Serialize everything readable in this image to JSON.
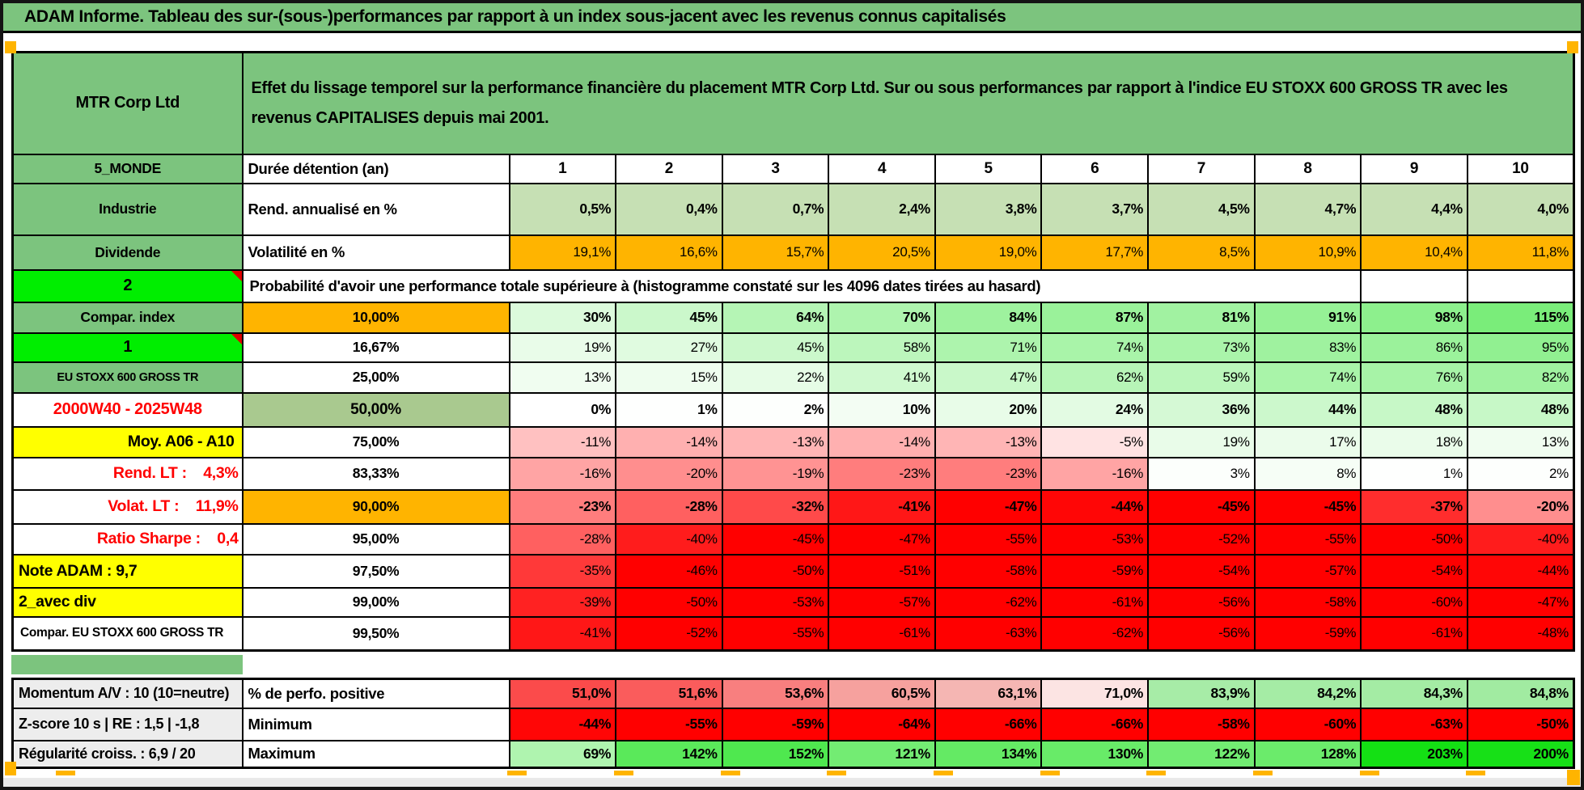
{
  "title": "ADAM Informe. Tableau des sur-(sous-)performances par rapport à un index sous-jacent avec les revenus connus capitalisés",
  "header": {
    "company": "MTR Corp Ltd",
    "description": "Effet du lissage temporel sur la performance financière du placement MTR Corp Ltd. Sur ou sous performances par rapport à l'indice EU STOXX 600 GROSS TR avec les revenus CAPITALISES depuis mai 2001."
  },
  "palette": {
    "header_green": "#7CC47E",
    "bright_green": "#00EE00",
    "yellow": "#FFFF00",
    "orange": "#FFB400",
    "mid_green": "#A9C98F",
    "light_green": "#C6E0B4",
    "gray_label": "#EDEDED",
    "footer_gray": "#E9E9E9",
    "red_text": "#FF0000",
    "corner_mark": "#FFB400",
    "scale_green_max": "#00DD00",
    "scale_red_max": "#FF0000"
  },
  "main_table": {
    "rows": [
      {
        "a": {
          "text": "5_MONDE",
          "variant": "a-green"
        },
        "b": {
          "text": "Durée détention (an)",
          "variant": "b-left"
        },
        "cells": {
          "mode": "header",
          "values": [
            "1",
            "2",
            "3",
            "4",
            "5",
            "6",
            "7",
            "8",
            "9",
            "10"
          ]
        }
      },
      {
        "a": {
          "text": "Industrie",
          "variant": "a-green"
        },
        "b": {
          "text": "Rend. annualisé en %",
          "variant": "b-left"
        },
        "cells": {
          "mode": "uniform",
          "bg": "light_green",
          "bold": true,
          "values": [
            "0,5%",
            "0,4%",
            "0,7%",
            "2,4%",
            "3,8%",
            "3,7%",
            "4,5%",
            "4,7%",
            "4,4%",
            "4,0%"
          ]
        }
      },
      {
        "a": {
          "text": "Dividende",
          "variant": "a-green"
        },
        "b": {
          "text": "Volatilité en %",
          "variant": "b-left"
        },
        "cells": {
          "mode": "uniform",
          "bg": "orange",
          "bold": false,
          "values": [
            "19,1%",
            "16,6%",
            "15,7%",
            "20,5%",
            "19,0%",
            "17,7%",
            "8,5%",
            "10,9%",
            "10,4%",
            "11,8%"
          ]
        }
      },
      {
        "a": {
          "text": "2",
          "variant": "a-bright",
          "triangle": true
        },
        "type": "merged",
        "merged_text": "Probabilité d'avoir une performance totale supérieure à (histogramme constaté sur les 4096 dates tirées au hasard)"
      },
      {
        "a": {
          "text": "Compar. index",
          "variant": "a-green"
        },
        "b": {
          "text": "10,00%",
          "variant": "b-orange"
        },
        "cells": {
          "mode": "scale",
          "bold": true,
          "values": [
            "30%",
            "45%",
            "64%",
            "70%",
            "84%",
            "87%",
            "81%",
            "91%",
            "98%",
            "115%"
          ]
        }
      },
      {
        "a": {
          "text": "1",
          "variant": "a-bright",
          "triangle": true
        },
        "b": {
          "text": "16,67%",
          "variant": "b-pct"
        },
        "cells": {
          "mode": "scale",
          "bold": false,
          "values": [
            "19%",
            "27%",
            "45%",
            "58%",
            "71%",
            "74%",
            "73%",
            "83%",
            "86%",
            "95%"
          ]
        }
      },
      {
        "a": {
          "text": "EU STOXX 600 GROSS TR",
          "variant": "a-green-small"
        },
        "b": {
          "text": "25,00%",
          "variant": "b-pct"
        },
        "cells": {
          "mode": "scale",
          "bold": false,
          "values": [
            "13%",
            "15%",
            "22%",
            "41%",
            "47%",
            "62%",
            "59%",
            "74%",
            "76%",
            "82%"
          ]
        }
      },
      {
        "a": {
          "text": "2000W40 - 2025W48",
          "variant": "a-red-c"
        },
        "b": {
          "text": "50,00%",
          "variant": "b-green"
        },
        "cells": {
          "mode": "scale",
          "bold": true,
          "values": [
            "0%",
            "1%",
            "2%",
            "10%",
            "20%",
            "24%",
            "36%",
            "44%",
            "48%",
            "48%"
          ]
        }
      },
      {
        "a": {
          "text": "Moy. A06 - A10",
          "variant": "a-yellow-r"
        },
        "b": {
          "text": "75,00%",
          "variant": "b-pct"
        },
        "cells": {
          "mode": "scale",
          "bold": false,
          "values": [
            "-11%",
            "-14%",
            "-13%",
            "-14%",
            "-13%",
            "-5%",
            "19%",
            "17%",
            "18%",
            "13%"
          ]
        }
      },
      {
        "a": {
          "text": "Rend. LT :    4,3%",
          "variant": "a-red-r"
        },
        "b": {
          "text": "83,33%",
          "variant": "b-pct"
        },
        "cells": {
          "mode": "scale",
          "bold": false,
          "values": [
            "-16%",
            "-20%",
            "-19%",
            "-23%",
            "-23%",
            "-16%",
            "3%",
            "8%",
            "1%",
            "2%"
          ]
        }
      },
      {
        "a": {
          "text": "Volat. LT :    11,9%",
          "variant": "a-red-r"
        },
        "b": {
          "text": "90,00%",
          "variant": "b-orange"
        },
        "cells": {
          "mode": "scale",
          "bold": true,
          "values": [
            "-23%",
            "-28%",
            "-32%",
            "-41%",
            "-47%",
            "-44%",
            "-45%",
            "-45%",
            "-37%",
            "-20%"
          ]
        }
      },
      {
        "a": {
          "text": "Ratio Sharpe :    0,4",
          "variant": "a-red-r"
        },
        "b": {
          "text": "95,00%",
          "variant": "b-pct"
        },
        "cells": {
          "mode": "scale",
          "bold": false,
          "values": [
            "-28%",
            "-40%",
            "-45%",
            "-47%",
            "-55%",
            "-53%",
            "-52%",
            "-55%",
            "-50%",
            "-40%"
          ]
        }
      },
      {
        "a": {
          "text": "Note ADAM : 9,7",
          "variant": "a-yellow-l"
        },
        "b": {
          "text": "97,50%",
          "variant": "b-pct"
        },
        "cells": {
          "mode": "scale",
          "bold": false,
          "values": [
            "-35%",
            "-46%",
            "-50%",
            "-51%",
            "-58%",
            "-59%",
            "-54%",
            "-57%",
            "-54%",
            "-44%"
          ]
        }
      },
      {
        "a": {
          "text": "2_avec div",
          "variant": "a-yellow-l"
        },
        "b": {
          "text": "99,00%",
          "variant": "b-pct"
        },
        "cells": {
          "mode": "scale",
          "bold": false,
          "values": [
            "-39%",
            "-50%",
            "-53%",
            "-57%",
            "-62%",
            "-61%",
            "-56%",
            "-58%",
            "-60%",
            "-47%"
          ]
        }
      },
      {
        "a": {
          "text": "Compar. EU STOXX 600 GROSS TR",
          "variant": "a-white-l"
        },
        "b": {
          "text": "99,50%",
          "variant": "b-pct"
        },
        "cells": {
          "mode": "scale",
          "bold": false,
          "values": [
            "-41%",
            "-52%",
            "-55%",
            "-61%",
            "-63%",
            "-62%",
            "-56%",
            "-59%",
            "-61%",
            "-48%"
          ]
        }
      }
    ]
  },
  "bottom_table": {
    "rows": [
      {
        "a": {
          "text": "Momentum A/V : 10 (10=neutre)",
          "variant": "a-gray"
        },
        "b": {
          "text": "% de perfo. positive",
          "variant": "b-left"
        },
        "cells": {
          "mode": "explicit",
          "bold": true,
          "values": [
            "51,0%",
            "51,6%",
            "53,6%",
            "60,5%",
            "63,1%",
            "71,0%",
            "83,9%",
            "84,2%",
            "84,3%",
            "84,8%"
          ],
          "colors": [
            "#FB4B4B",
            "#FA5C5C",
            "#F87F7F",
            "#F6A19E",
            "#F5B6B3",
            "#FCE4E3",
            "#A7ECA7",
            "#A5ECA5",
            "#A4ECA4",
            "#A1EBA1"
          ]
        }
      },
      {
        "a": {
          "text": "Z-score 10 s | RE : 1,5 | -1,8",
          "variant": "a-gray"
        },
        "b": {
          "text": "Minimum",
          "variant": "b-left"
        },
        "cells": {
          "mode": "scale",
          "bold": true,
          "values": [
            "-44%",
            "-55%",
            "-59%",
            "-64%",
            "-66%",
            "-66%",
            "-58%",
            "-60%",
            "-63%",
            "-50%"
          ]
        }
      },
      {
        "a": {
          "text": "Régularité croiss. : 6,9 / 20",
          "variant": "a-gray"
        },
        "b": {
          "text": "Maximum",
          "variant": "b-left"
        },
        "cells": {
          "mode": "scale",
          "bold": true,
          "values": [
            "69%",
            "142%",
            "152%",
            "121%",
            "134%",
            "130%",
            "122%",
            "128%",
            "203%",
            "200%"
          ]
        }
      }
    ]
  }
}
